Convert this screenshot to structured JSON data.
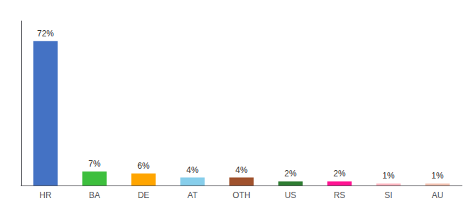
{
  "chart_data": {
    "type": "bar",
    "categories": [
      "HR",
      "BA",
      "DE",
      "AT",
      "OTH",
      "US",
      "RS",
      "SI",
      "AU"
    ],
    "values": [
      72,
      7,
      6,
      4,
      4,
      2,
      2,
      1,
      1
    ],
    "value_labels": [
      "72%",
      "7%",
      "6%",
      "4%",
      "4%",
      "2%",
      "2%",
      "1%",
      "1%"
    ],
    "colors": [
      "#4472C4",
      "#3DBF3D",
      "#FFA500",
      "#87CEEB",
      "#A0522D",
      "#2E7D32",
      "#FF1493",
      "#FFB6C1",
      "#F4C2B0"
    ],
    "data_labels": true,
    "ylim": [
      0,
      82
    ],
    "tick_labels": "x",
    "grid": false
  }
}
